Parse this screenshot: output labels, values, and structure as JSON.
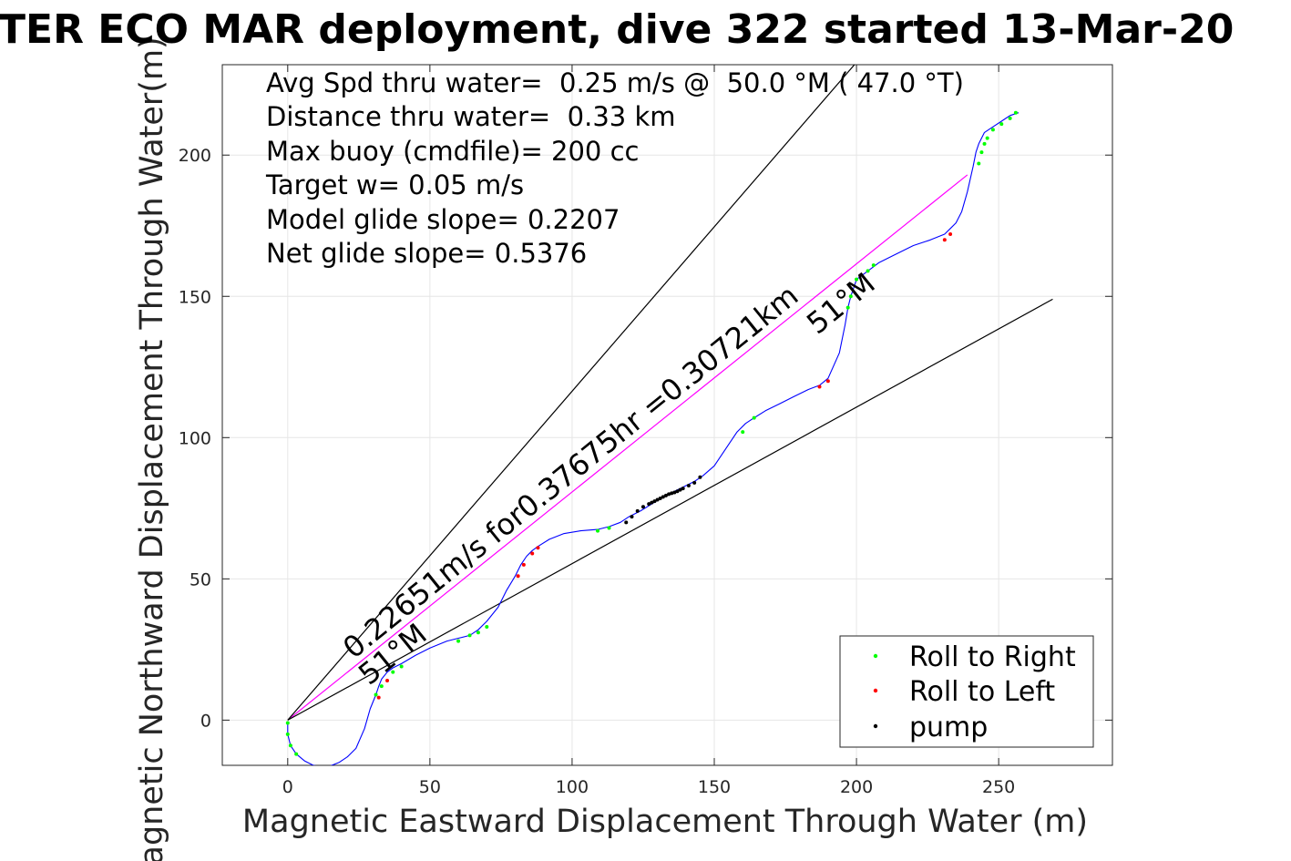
{
  "chart_data": {
    "type": "line",
    "title": "TER ECO MAR deployment, dive 322 started 13-Mar-20",
    "xlabel": "Magnetic Eastward Displacement Through Water (m)",
    "ylabel": "Magnetic Northward Displacement Through Water(m)",
    "xlim": [
      -23,
      290
    ],
    "ylim": [
      -16,
      232
    ],
    "xticks": [
      0,
      50,
      100,
      150,
      200,
      250
    ],
    "yticks": [
      0,
      50,
      100,
      150,
      200
    ],
    "grid": true,
    "legend_position": "bottom-right",
    "info_lines": [
      "Avg Spd thru water=  0.25 m/s @  50.0 °M ( 47.0 °T)",
      "Distance thru water=  0.33 km",
      "Max buoy (cmdfile)= 200 cc",
      "Target w= 0.05 m/s",
      "Model glide slope= 0.2207",
      "Net glide slope= 0.5376"
    ],
    "annotations": {
      "speed_label": "0.22651m/s for0.37675hr =0.30721km",
      "heading_label": "51°M",
      "heading_label_start": "51°M"
    },
    "track": {
      "x": [
        0,
        0,
        1,
        3,
        6,
        9,
        12,
        15,
        18,
        21,
        24,
        27,
        29,
        31,
        32,
        33,
        35,
        37,
        40,
        45,
        50,
        56,
        60,
        64,
        67,
        70,
        74,
        77,
        80,
        82,
        84,
        86,
        88,
        92,
        97,
        103,
        109,
        113,
        117,
        120,
        124,
        128,
        132,
        135,
        139,
        143,
        146,
        150,
        154,
        158,
        161,
        164,
        168,
        173,
        178,
        183,
        187,
        190,
        194,
        196,
        197,
        198,
        199,
        200,
        204,
        208,
        214,
        220,
        226,
        231,
        233,
        235,
        237,
        239,
        241,
        242,
        243,
        245,
        248,
        251,
        254,
        257
      ],
      "y": [
        -1,
        -5,
        -9,
        -12,
        -14.5,
        -16,
        -16.5,
        -16.2,
        -15,
        -13,
        -10,
        -3,
        4,
        9,
        12,
        14.5,
        17,
        18.5,
        20,
        23,
        25.5,
        28,
        29,
        30,
        32,
        35,
        40,
        46,
        51,
        55,
        58,
        60,
        61.5,
        64,
        66,
        67,
        67.5,
        68.5,
        70,
        72,
        74,
        76.5,
        79,
        80.5,
        82.5,
        84.5,
        86.5,
        90,
        96,
        102,
        105,
        107,
        109.5,
        112,
        114.5,
        117,
        118.5,
        121,
        130,
        140,
        146,
        150,
        153,
        156,
        159,
        162,
        165,
        168,
        170,
        172,
        174,
        176,
        180,
        187,
        196,
        201,
        204,
        208,
        210,
        212,
        214,
        215
      ]
    },
    "series": [
      {
        "name": "Roll to Right",
        "color": "#00ff00",
        "x": [
          0,
          0,
          1,
          3,
          31,
          33,
          37,
          40,
          60,
          64,
          67,
          70,
          109,
          113,
          160,
          164,
          197,
          198,
          200,
          204,
          206,
          243,
          244,
          245,
          246,
          248,
          251,
          254,
          256
        ],
        "y": [
          -1,
          -5,
          -9,
          -12,
          9,
          12,
          17,
          19,
          28,
          30,
          31,
          33,
          67,
          68,
          102,
          107,
          146,
          150,
          156,
          159,
          161,
          197,
          201,
          204,
          206,
          209,
          211,
          213,
          215
        ]
      },
      {
        "name": "Roll to Left",
        "color": "#ff0000",
        "x": [
          32,
          35,
          81,
          83,
          86,
          88,
          187,
          190,
          231,
          233
        ],
        "y": [
          8,
          14,
          51,
          55,
          59,
          61,
          118,
          120,
          170,
          172
        ]
      },
      {
        "name": "pump",
        "color": "#000000",
        "x": [
          119,
          121,
          123,
          125,
          127,
          128,
          129,
          130,
          131,
          132,
          133,
          134,
          135,
          136,
          137,
          138,
          139,
          141,
          143,
          145
        ],
        "y": [
          70,
          72,
          74,
          75.5,
          76.5,
          77,
          77.5,
          78,
          78.5,
          79,
          79.5,
          80,
          80.3,
          80.6,
          81,
          81.5,
          82,
          83,
          84,
          86
        ]
      }
    ],
    "reference_lines": [
      {
        "name": "bearing-line",
        "color": "#ff00ff",
        "x": [
          0,
          239
        ],
        "y": [
          0,
          193
        ]
      },
      {
        "name": "cone-left-line",
        "color": "#000000",
        "x": [
          0,
          201
        ],
        "y": [
          0,
          234
        ]
      },
      {
        "name": "cone-right-line",
        "color": "#000000",
        "x": [
          0,
          269
        ],
        "y": [
          0,
          149
        ]
      }
    ]
  }
}
